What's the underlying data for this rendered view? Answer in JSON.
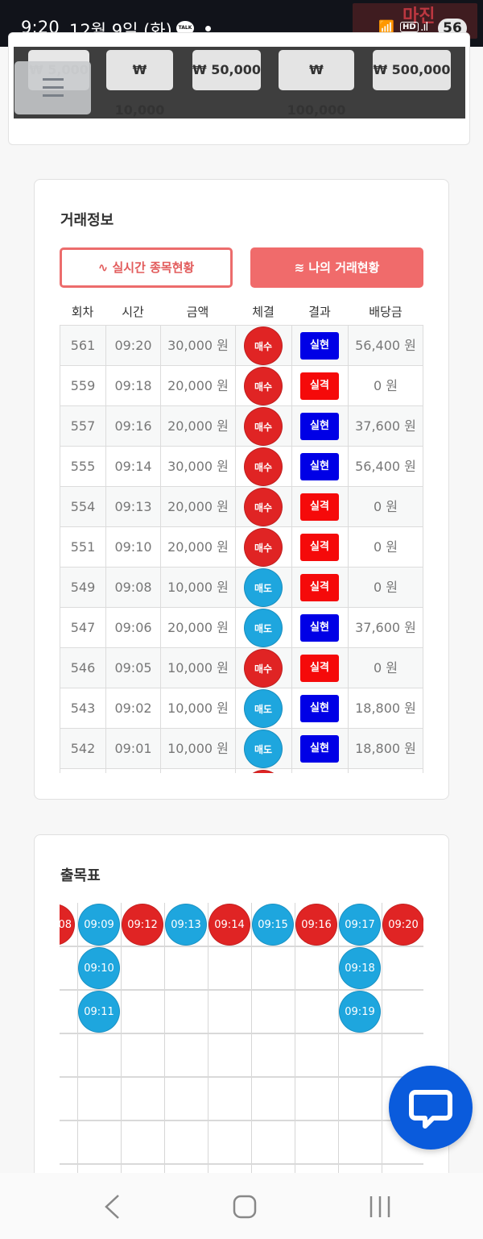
{
  "status_bar": {
    "time": "9:20",
    "date": "12월 9일 (화)",
    "talk_icon": "TALK",
    "battery": "56",
    "watermark": "마진"
  },
  "chips": {
    "items": [
      {
        "label": "₩ 5,000"
      },
      {
        "label": "₩ 10,000"
      },
      {
        "label": "₩ 50,000"
      },
      {
        "label": "₩ 100,000"
      },
      {
        "label": "₩ 500,000"
      }
    ]
  },
  "trade_info": {
    "title": "거래정보",
    "btn_realtime": "∿ 실시간 종목현황",
    "btn_my_trades": "≋ 나의 거래현황",
    "columns": [
      "회차",
      "시간",
      "금액",
      "체결",
      "결과",
      "배당금"
    ],
    "rows": [
      {
        "round": "561",
        "time": "09:20",
        "amount": "30,000 원",
        "position": "매수",
        "result": "실현",
        "payout": "56,400 원"
      },
      {
        "round": "559",
        "time": "09:18",
        "amount": "20,000 원",
        "position": "매수",
        "result": "실격",
        "payout": "0 원"
      },
      {
        "round": "557",
        "time": "09:16",
        "amount": "20,000 원",
        "position": "매수",
        "result": "실현",
        "payout": "37,600 원"
      },
      {
        "round": "555",
        "time": "09:14",
        "amount": "30,000 원",
        "position": "매수",
        "result": "실현",
        "payout": "56,400 원"
      },
      {
        "round": "554",
        "time": "09:13",
        "amount": "20,000 원",
        "position": "매수",
        "result": "실격",
        "payout": "0 원"
      },
      {
        "round": "551",
        "time": "09:10",
        "amount": "20,000 원",
        "position": "매수",
        "result": "실격",
        "payout": "0 원"
      },
      {
        "round": "549",
        "time": "09:08",
        "amount": "10,000 원",
        "position": "매도",
        "result": "실격",
        "payout": "0 원"
      },
      {
        "round": "547",
        "time": "09:06",
        "amount": "20,000 원",
        "position": "매도",
        "result": "실현",
        "payout": "37,600 원"
      },
      {
        "round": "546",
        "time": "09:05",
        "amount": "10,000 원",
        "position": "매수",
        "result": "실격",
        "payout": "0 원"
      },
      {
        "round": "543",
        "time": "09:02",
        "amount": "10,000 원",
        "position": "매도",
        "result": "실현",
        "payout": "18,800 원"
      },
      {
        "round": "542",
        "time": "09:01",
        "amount": "10,000 원",
        "position": "매도",
        "result": "실현",
        "payout": "18,800 원"
      }
    ]
  },
  "result_board": {
    "title": "출목표",
    "columns": [
      {
        "color": "red",
        "cells": [
          "08"
        ]
      },
      {
        "color": "blue",
        "cells": [
          "09:09",
          "09:10",
          "09:11"
        ]
      },
      {
        "color": "red",
        "cells": [
          "09:12"
        ]
      },
      {
        "color": "blue",
        "cells": [
          "09:13"
        ]
      },
      {
        "color": "red",
        "cells": [
          "09:14"
        ]
      },
      {
        "color": "blue",
        "cells": [
          "09:15"
        ]
      },
      {
        "color": "red",
        "cells": [
          "09:16"
        ]
      },
      {
        "color": "blue",
        "cells": [
          "09:17",
          "09:18",
          "09:19"
        ]
      },
      {
        "color": "red",
        "cells": [
          "09:20"
        ]
      }
    ]
  },
  "colors": {
    "buy_red": "#e02424",
    "sell_blue": "#1ea6de",
    "win_blue": "#0000e6",
    "lose_red": "#f50a0a",
    "accent_coral": "#f06b6b",
    "chat_blue": "#0a5bdc"
  }
}
